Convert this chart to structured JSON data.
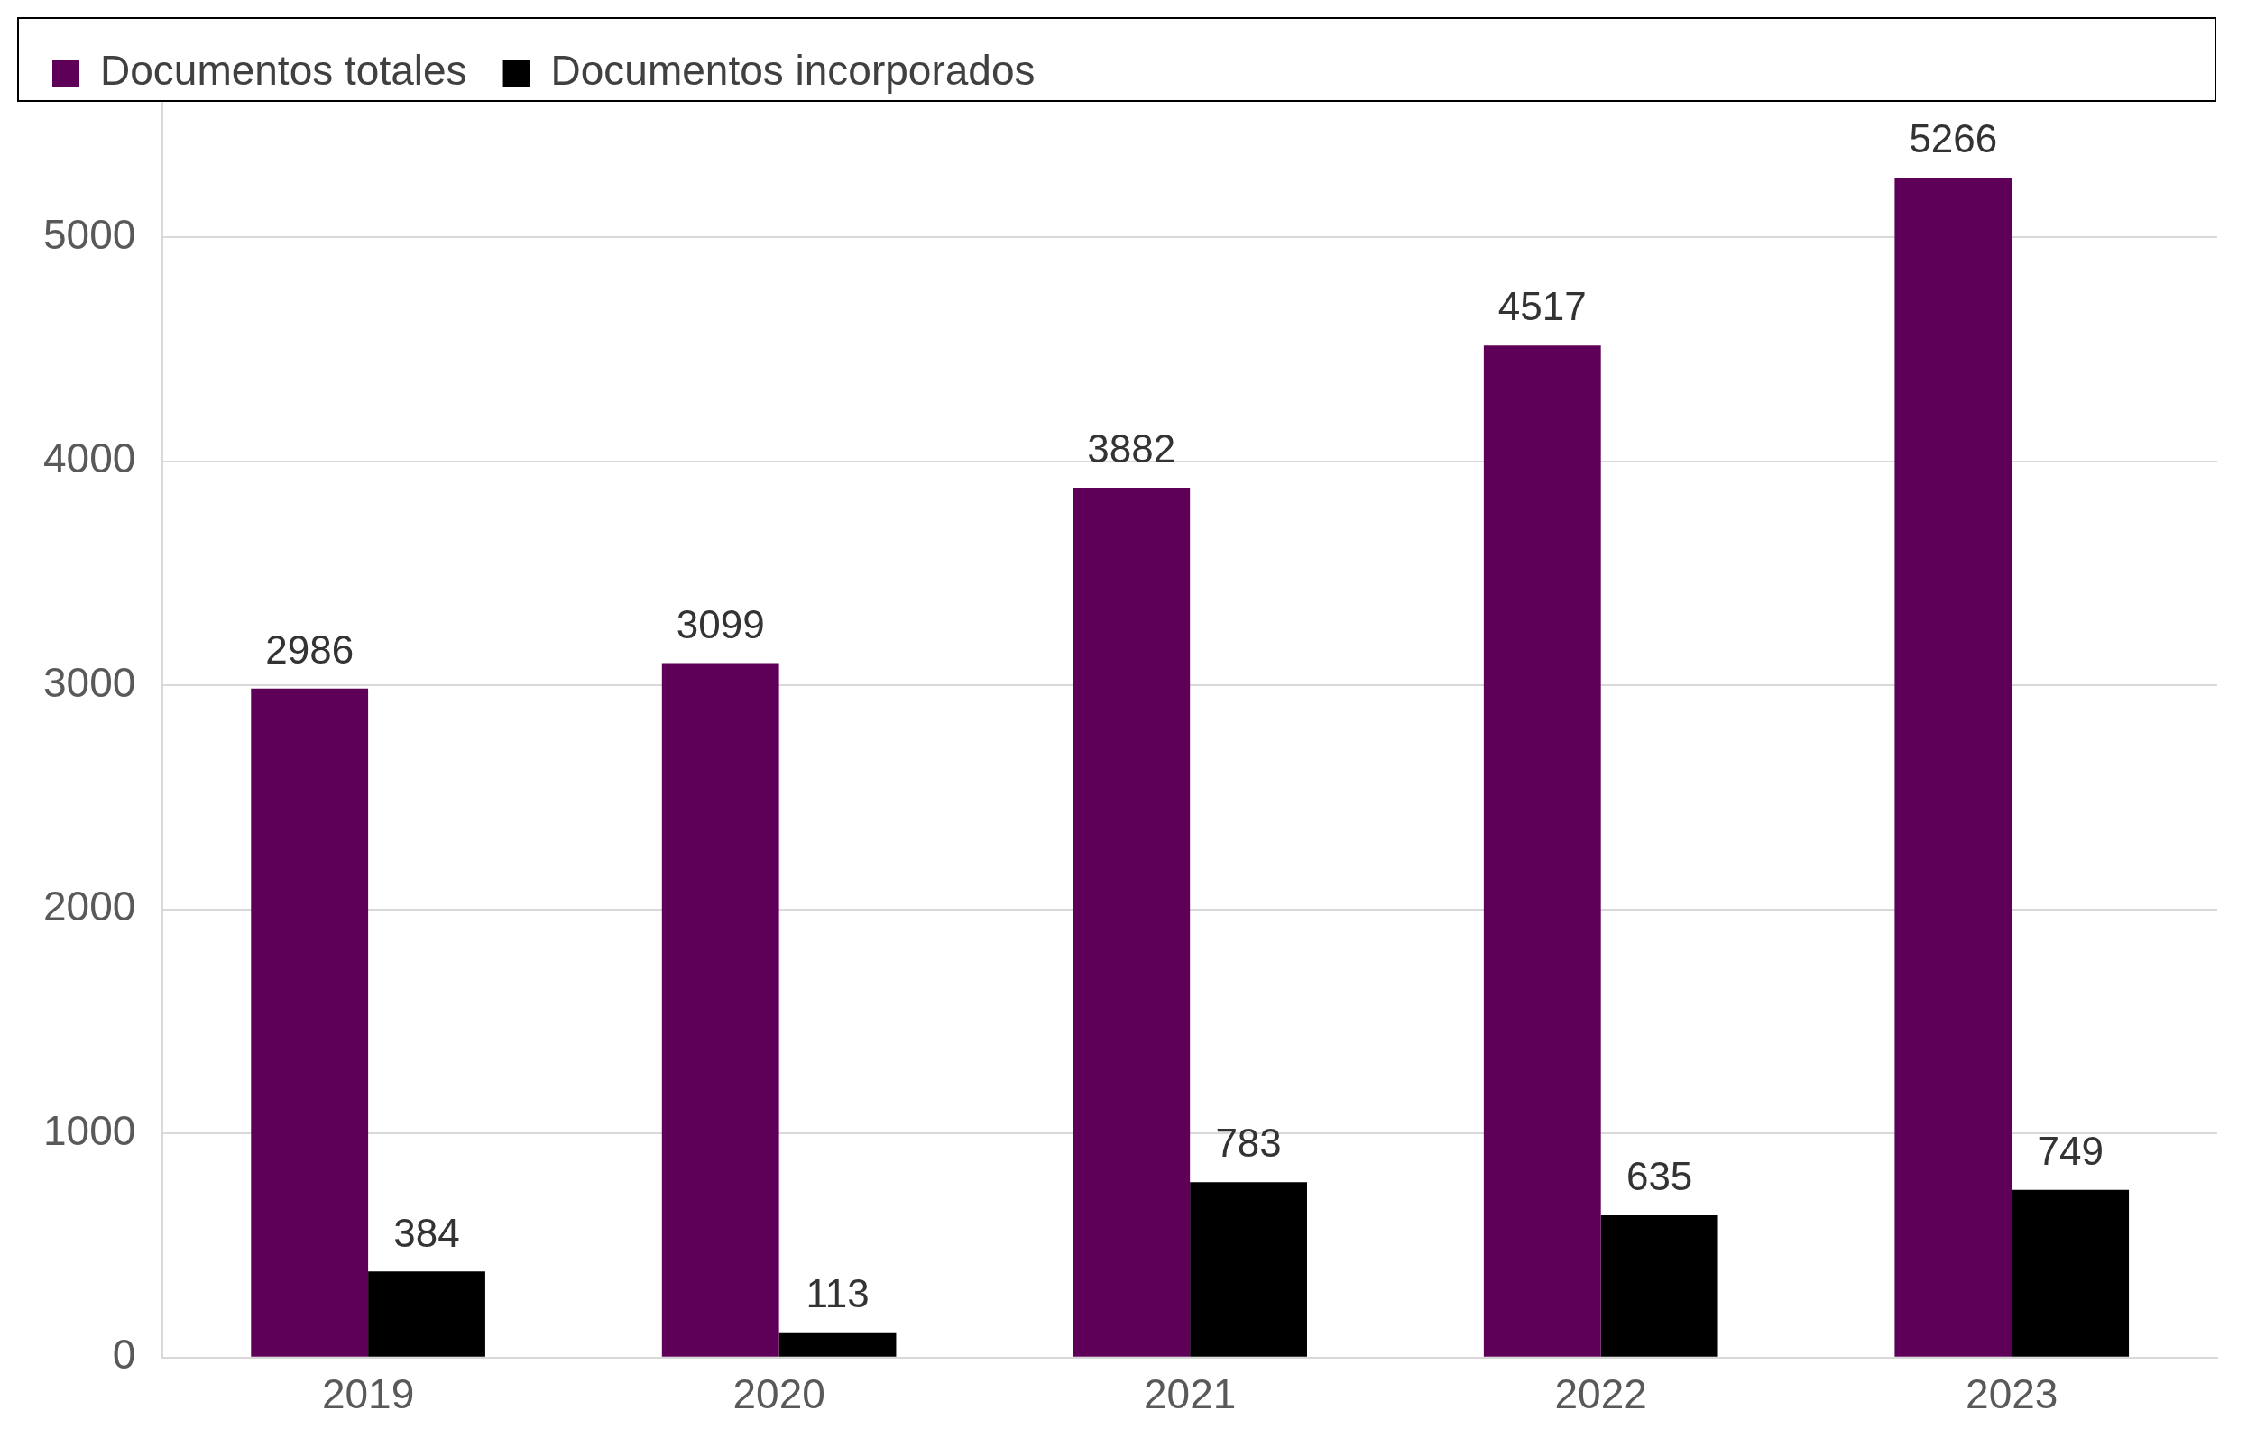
{
  "chart_data": {
    "type": "bar",
    "categories": [
      "2019",
      "2020",
      "2021",
      "2022",
      "2023"
    ],
    "series": [
      {
        "name": "Documentos totales",
        "color": "#5f0058",
        "values": [
          2986,
          3099,
          3882,
          4517,
          5266
        ]
      },
      {
        "name": "Documentos incorporados",
        "color": "#000000",
        "values": [
          384,
          113,
          783,
          635,
          749
        ]
      }
    ],
    "ylim": [
      0,
      5600
    ],
    "yticks": [
      0,
      1000,
      2000,
      3000,
      4000,
      5000
    ],
    "grid": "y",
    "legend": "top left",
    "data_labels": true
  }
}
